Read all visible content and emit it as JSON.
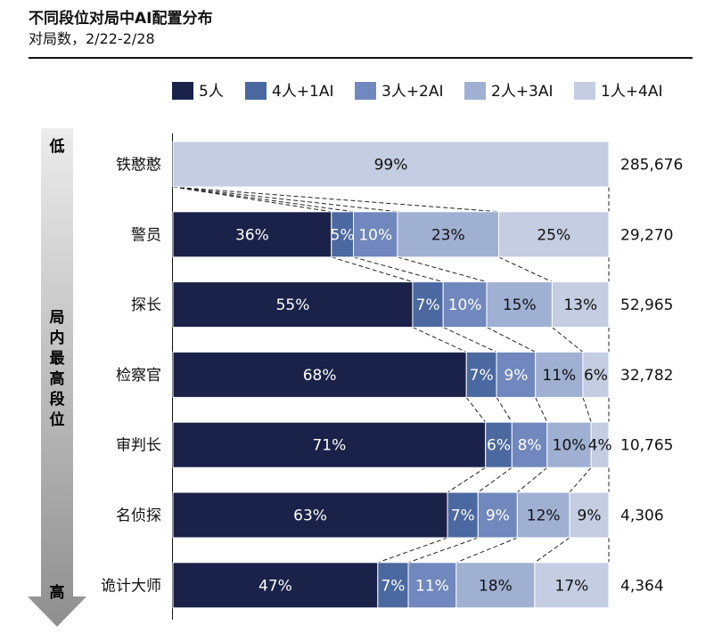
{
  "header": {
    "title": "不同段位对局中AI配置分布",
    "subtitle": "对局数，2/22-2/28"
  },
  "axis": {
    "top_label": "低",
    "bottom_label": "高",
    "mid_label": "局内最高段位"
  },
  "colors": {
    "5人": "#1b2249",
    "4人+1AI": "#4b68a0",
    "3人+2AI": "#7088bd",
    "2人+3AI": "#9fb0d2",
    "1人+4AI": "#c4cde1",
    "arrow_top": "#ececec",
    "arrow_bottom": "#8f8f8f"
  },
  "chart_data": {
    "type": "bar",
    "orientation": "horizontal",
    "stacked": true,
    "normalized": true,
    "title": "不同段位对局中AI配置分布",
    "subtitle": "对局数，2/22-2/28",
    "legend": [
      "5人",
      "4人+1AI",
      "3人+2AI",
      "2人+3AI",
      "1人+4AI"
    ],
    "legend_position": "top",
    "categories": [
      "铁憨憨",
      "警员",
      "探长",
      "检察官",
      "审判长",
      "名侦探",
      "诡计大师"
    ],
    "totals": [
      "285,676",
      "29,270",
      "52,965",
      "32,782",
      "10,765",
      "4,306",
      "4,364"
    ],
    "series": [
      {
        "name": "5人",
        "values": [
          0,
          36,
          55,
          68,
          71,
          63,
          47
        ],
        "labels": [
          "",
          "36%",
          "55%",
          "68%",
          "71%",
          "63%",
          "47%"
        ]
      },
      {
        "name": "4人+1AI",
        "values": [
          0,
          5,
          7,
          7,
          6,
          7,
          7
        ],
        "labels": [
          "",
          "5%",
          "7%",
          "7%",
          "6%",
          "7%",
          "7%"
        ]
      },
      {
        "name": "3人+2AI",
        "values": [
          0,
          10,
          10,
          9,
          8,
          9,
          11
        ],
        "labels": [
          "",
          "10%",
          "10%",
          "9%",
          "8%",
          "9%",
          "11%"
        ]
      },
      {
        "name": "2人+3AI",
        "values": [
          0,
          23,
          15,
          11,
          10,
          12,
          18
        ],
        "labels": [
          "",
          "23%",
          "15%",
          "11%",
          "10%",
          "12%",
          "18%"
        ]
      },
      {
        "name": "1人+4AI",
        "values": [
          99,
          25,
          13,
          6,
          4,
          9,
          17
        ],
        "labels": [
          "99%",
          "25%",
          "13%",
          "6%",
          "4%",
          "9%",
          "17%"
        ]
      }
    ],
    "xlim": [
      0,
      100
    ],
    "grid": false
  }
}
